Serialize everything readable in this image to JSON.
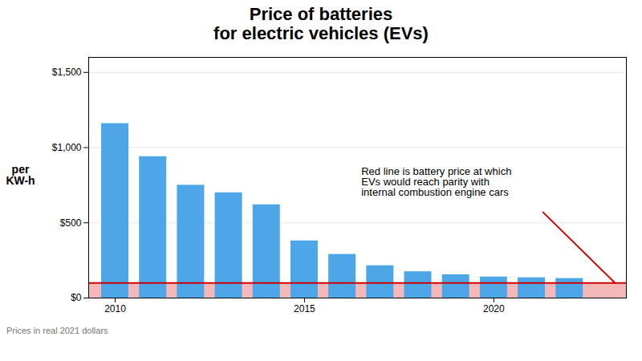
{
  "chart_data": {
    "type": "bar",
    "title": "Price of batteries\nfor electric vehicles (EVs)",
    "ylabel": "per\nKW-h",
    "caption": "Prices in real 2021 dollars",
    "x": [
      2010,
      2011,
      2012,
      2013,
      2014,
      2015,
      2016,
      2017,
      2018,
      2019,
      2020,
      2021,
      2022
    ],
    "values": [
      1160,
      940,
      750,
      700,
      620,
      380,
      290,
      215,
      175,
      155,
      140,
      135,
      130
    ],
    "color": "#4da6e8",
    "xlim": [
      2009.3,
      2023.5
    ],
    "xticks": [
      2010,
      2015,
      2020
    ],
    "ylim": [
      0,
      1600
    ],
    "yticks": [
      {
        "value": 0,
        "label": "$0"
      },
      {
        "value": 500,
        "label": "$500"
      },
      {
        "value": 1000,
        "label": "$1,000"
      },
      {
        "value": 1500,
        "label": "$1,500"
      }
    ],
    "grid": "y",
    "parity_line": {
      "value": 100,
      "color": "#cc0000",
      "fill_color": "#f5b8b8"
    },
    "diagonal_line": {
      "x": [
        2021.3,
        2023.2
      ],
      "y": [
        570,
        100
      ],
      "color": "#cc0000"
    },
    "annotation": {
      "text": "Red line is battery price at which\nEVs would reach parity with\ninternal combustion engine cars",
      "x": 2016.5,
      "y": 870
    }
  }
}
